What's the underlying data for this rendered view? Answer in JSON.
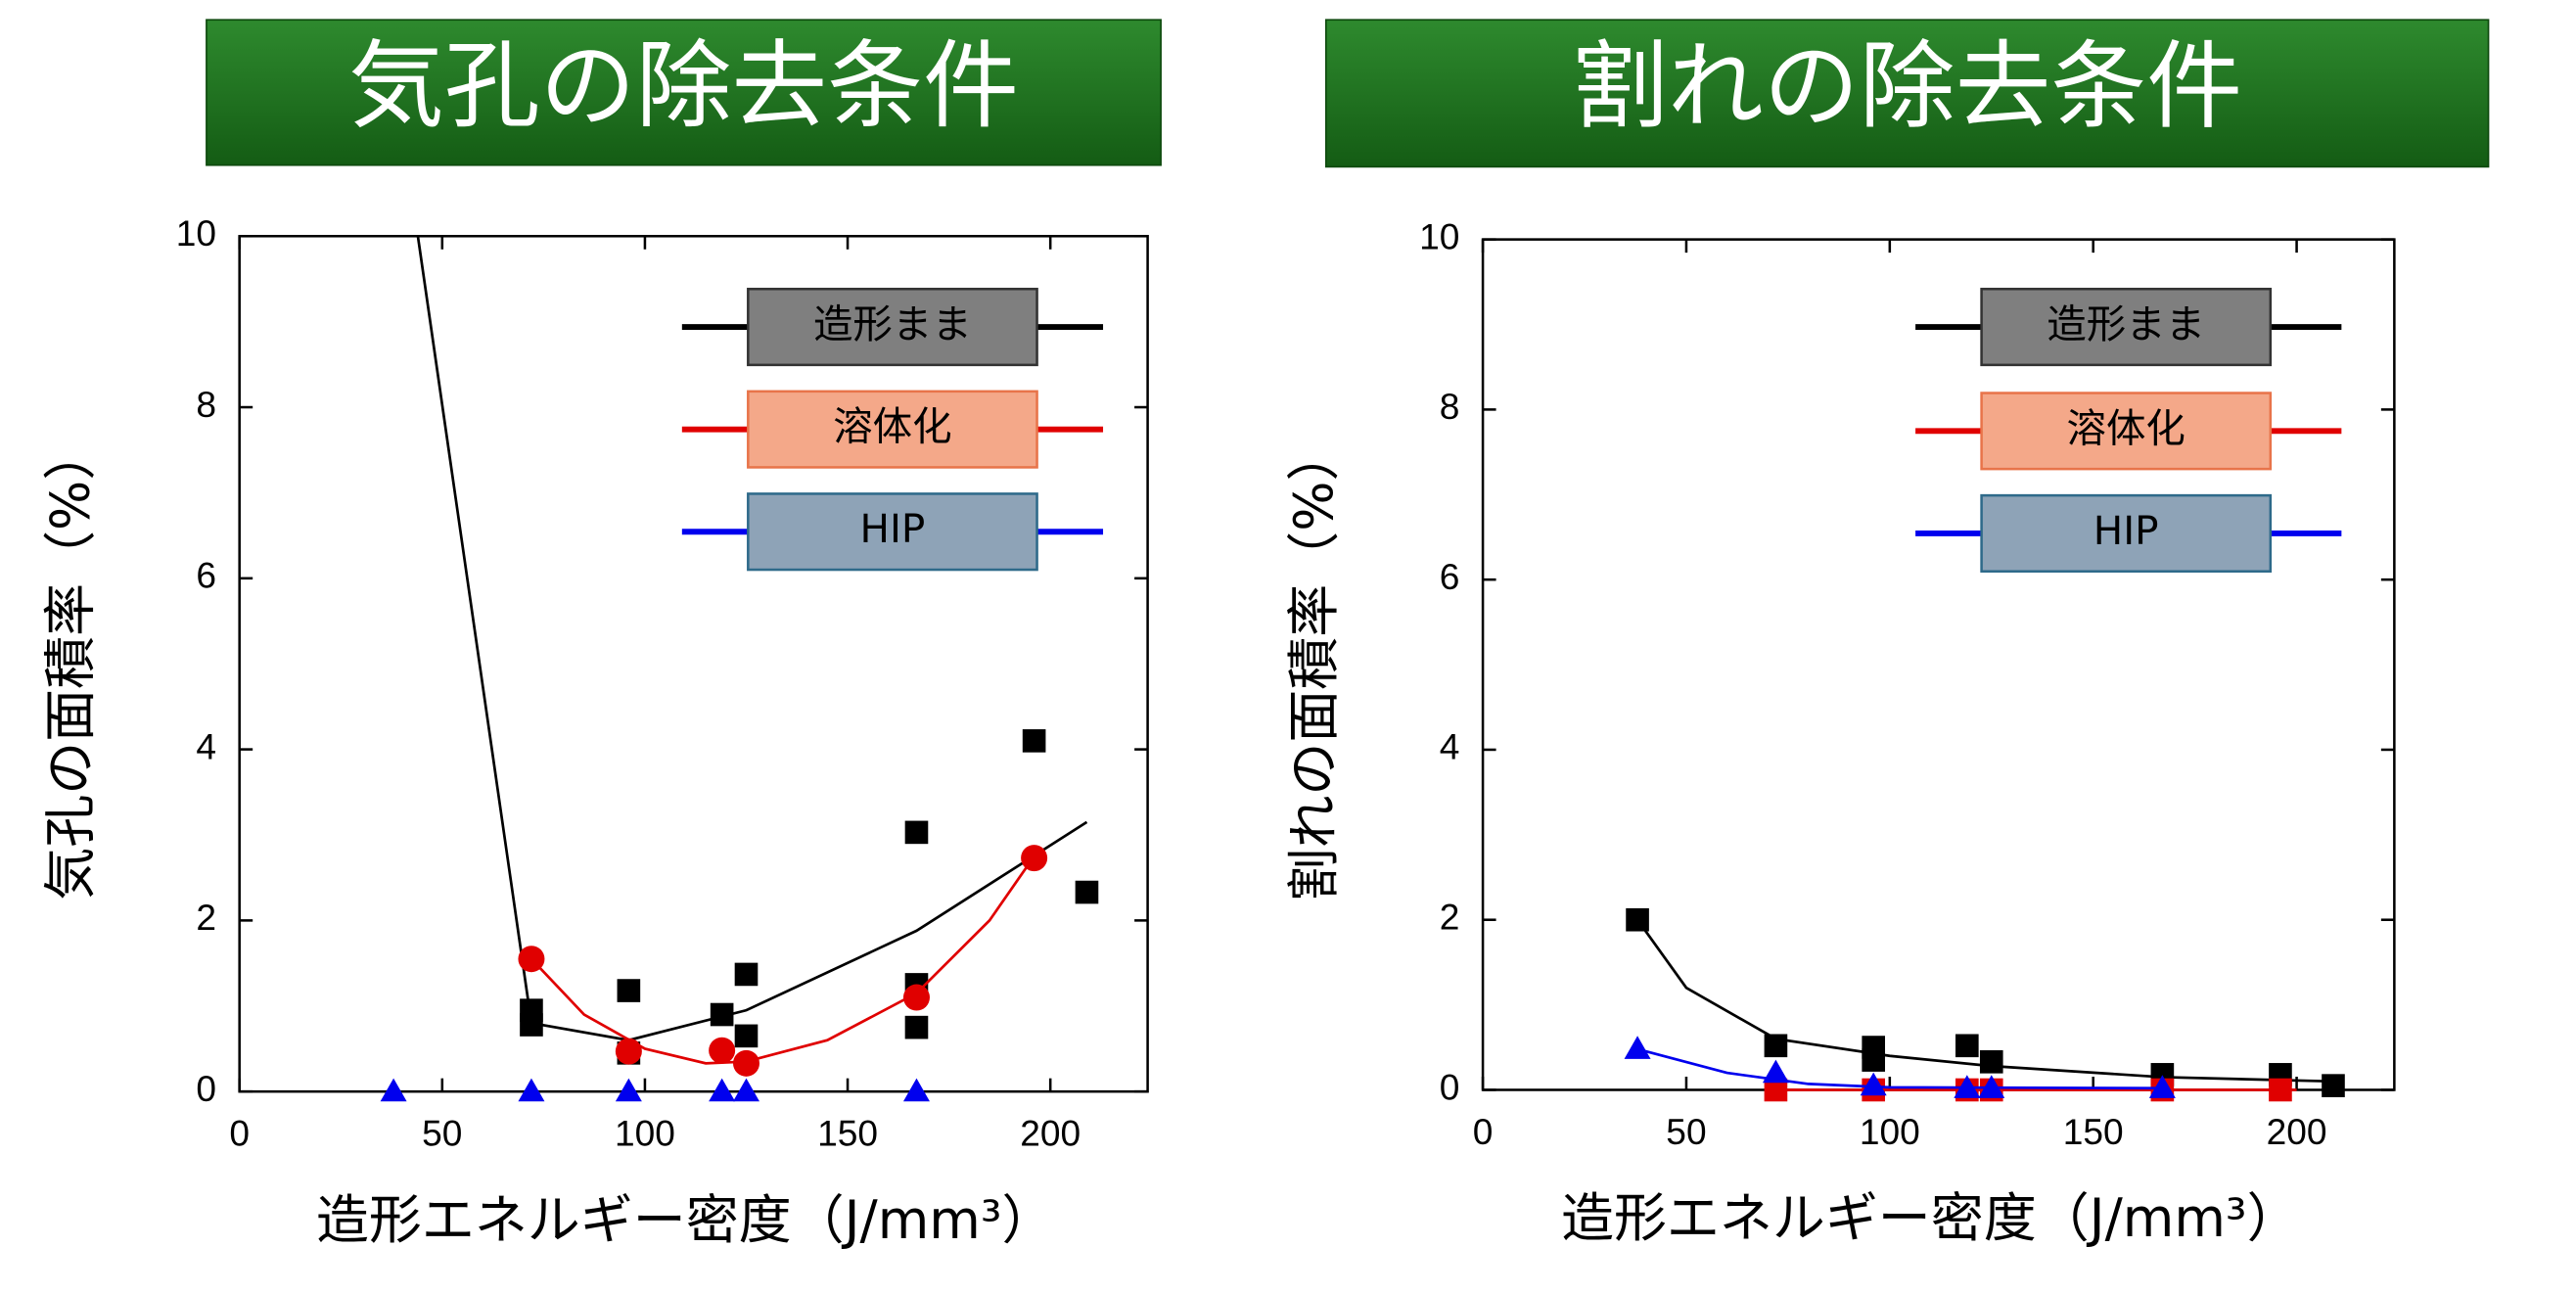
{
  "chart_data": [
    {
      "type": "scatter",
      "title": "気孔の除去条件",
      "xlabel": "造形エネルギー密度（J/mm³）",
      "ylabel": "気孔の面積率（%）",
      "xlim": [
        0,
        224
      ],
      "ylim": [
        0,
        10
      ],
      "xticks": [
        0,
        50,
        100,
        150,
        200
      ],
      "yticks": [
        0,
        2,
        4,
        6,
        8,
        10
      ],
      "series": [
        {
          "name": "造形まま",
          "color": "#000000",
          "marker": "square",
          "legend_fill": "#7f7f7f",
          "legend_border": "#333333",
          "x": [
            72,
            72,
            96,
            96,
            119,
            125,
            125,
            167,
            167,
            167,
            196,
            209
          ],
          "values": [
            0.95,
            0.78,
            1.18,
            0.45,
            0.9,
            1.37,
            0.65,
            3.03,
            1.25,
            0.75,
            4.1,
            2.33
          ],
          "fit_x": [
            44,
            72,
            96,
            125,
            167,
            209
          ],
          "fit_values": [
            10,
            0.8,
            0.6,
            0.95,
            1.88,
            3.15
          ]
        },
        {
          "name": "溶体化",
          "color": "#e00000",
          "marker": "circle",
          "legend_fill": "#f4a889",
          "legend_border": "#e8744a",
          "x": [
            72,
            96,
            119,
            125,
            167,
            196
          ],
          "values": [
            1.55,
            0.47,
            0.48,
            0.33,
            1.1,
            2.73
          ],
          "fit_x": [
            72,
            85,
            100,
            115,
            125,
            145,
            167,
            185,
            196
          ],
          "fit_values": [
            1.55,
            0.9,
            0.5,
            0.33,
            0.35,
            0.6,
            1.15,
            2.0,
            2.75
          ]
        },
        {
          "name": "HIP",
          "color": "#0000ee",
          "marker": "triangle",
          "legend_fill": "#8ea3b7",
          "legend_border": "#2e6a8a",
          "x": [
            38,
            72,
            96,
            119,
            125,
            167
          ],
          "values": [
            0,
            0,
            0,
            0,
            0,
            0
          ]
        }
      ]
    },
    {
      "type": "scatter",
      "title": "割れの除去条件",
      "xlabel": "造形エネルギー密度（J/mm³）",
      "ylabel": "割れの面積率（%）",
      "xlim": [
        0,
        224
      ],
      "ylim": [
        0,
        10
      ],
      "xticks": [
        0,
        50,
        100,
        150,
        200
      ],
      "yticks": [
        0,
        2,
        4,
        6,
        8,
        10
      ],
      "series": [
        {
          "name": "造形まま",
          "color": "#000000",
          "marker": "square",
          "legend_fill": "#7f7f7f",
          "legend_border": "#333333",
          "x": [
            38,
            72,
            96,
            96,
            119,
            125,
            167,
            196,
            209
          ],
          "values": [
            2.0,
            0.52,
            0.5,
            0.35,
            0.52,
            0.33,
            0.18,
            0.18,
            0.05
          ],
          "fit_x": [
            38,
            50,
            72,
            100,
            125,
            167,
            209
          ],
          "fit_values": [
            2.0,
            1.2,
            0.6,
            0.4,
            0.28,
            0.15,
            0.1
          ]
        },
        {
          "name": "溶体化",
          "color": "#e00000",
          "marker": "square",
          "legend_fill": "#f4a889",
          "legend_border": "#e8744a",
          "x": [
            72,
            96,
            119,
            125,
            167,
            196
          ],
          "values": [
            0,
            0,
            0,
            0,
            0,
            0
          ],
          "fit_x": [
            72,
            120,
            167,
            200
          ],
          "fit_values": [
            0,
            0,
            0,
            0
          ]
        },
        {
          "name": "HIP",
          "color": "#0000ee",
          "marker": "triangle",
          "legend_fill": "#8ea3b7",
          "legend_border": "#2e6a8a",
          "x": [
            38,
            72,
            96,
            119,
            125,
            167
          ],
          "values": [
            0.48,
            0.2,
            0.05,
            0.02,
            0.02,
            0.02
          ],
          "fit_x": [
            38,
            60,
            80,
            100,
            167
          ],
          "fit_values": [
            0.48,
            0.2,
            0.07,
            0.03,
            0.02
          ]
        }
      ]
    }
  ]
}
